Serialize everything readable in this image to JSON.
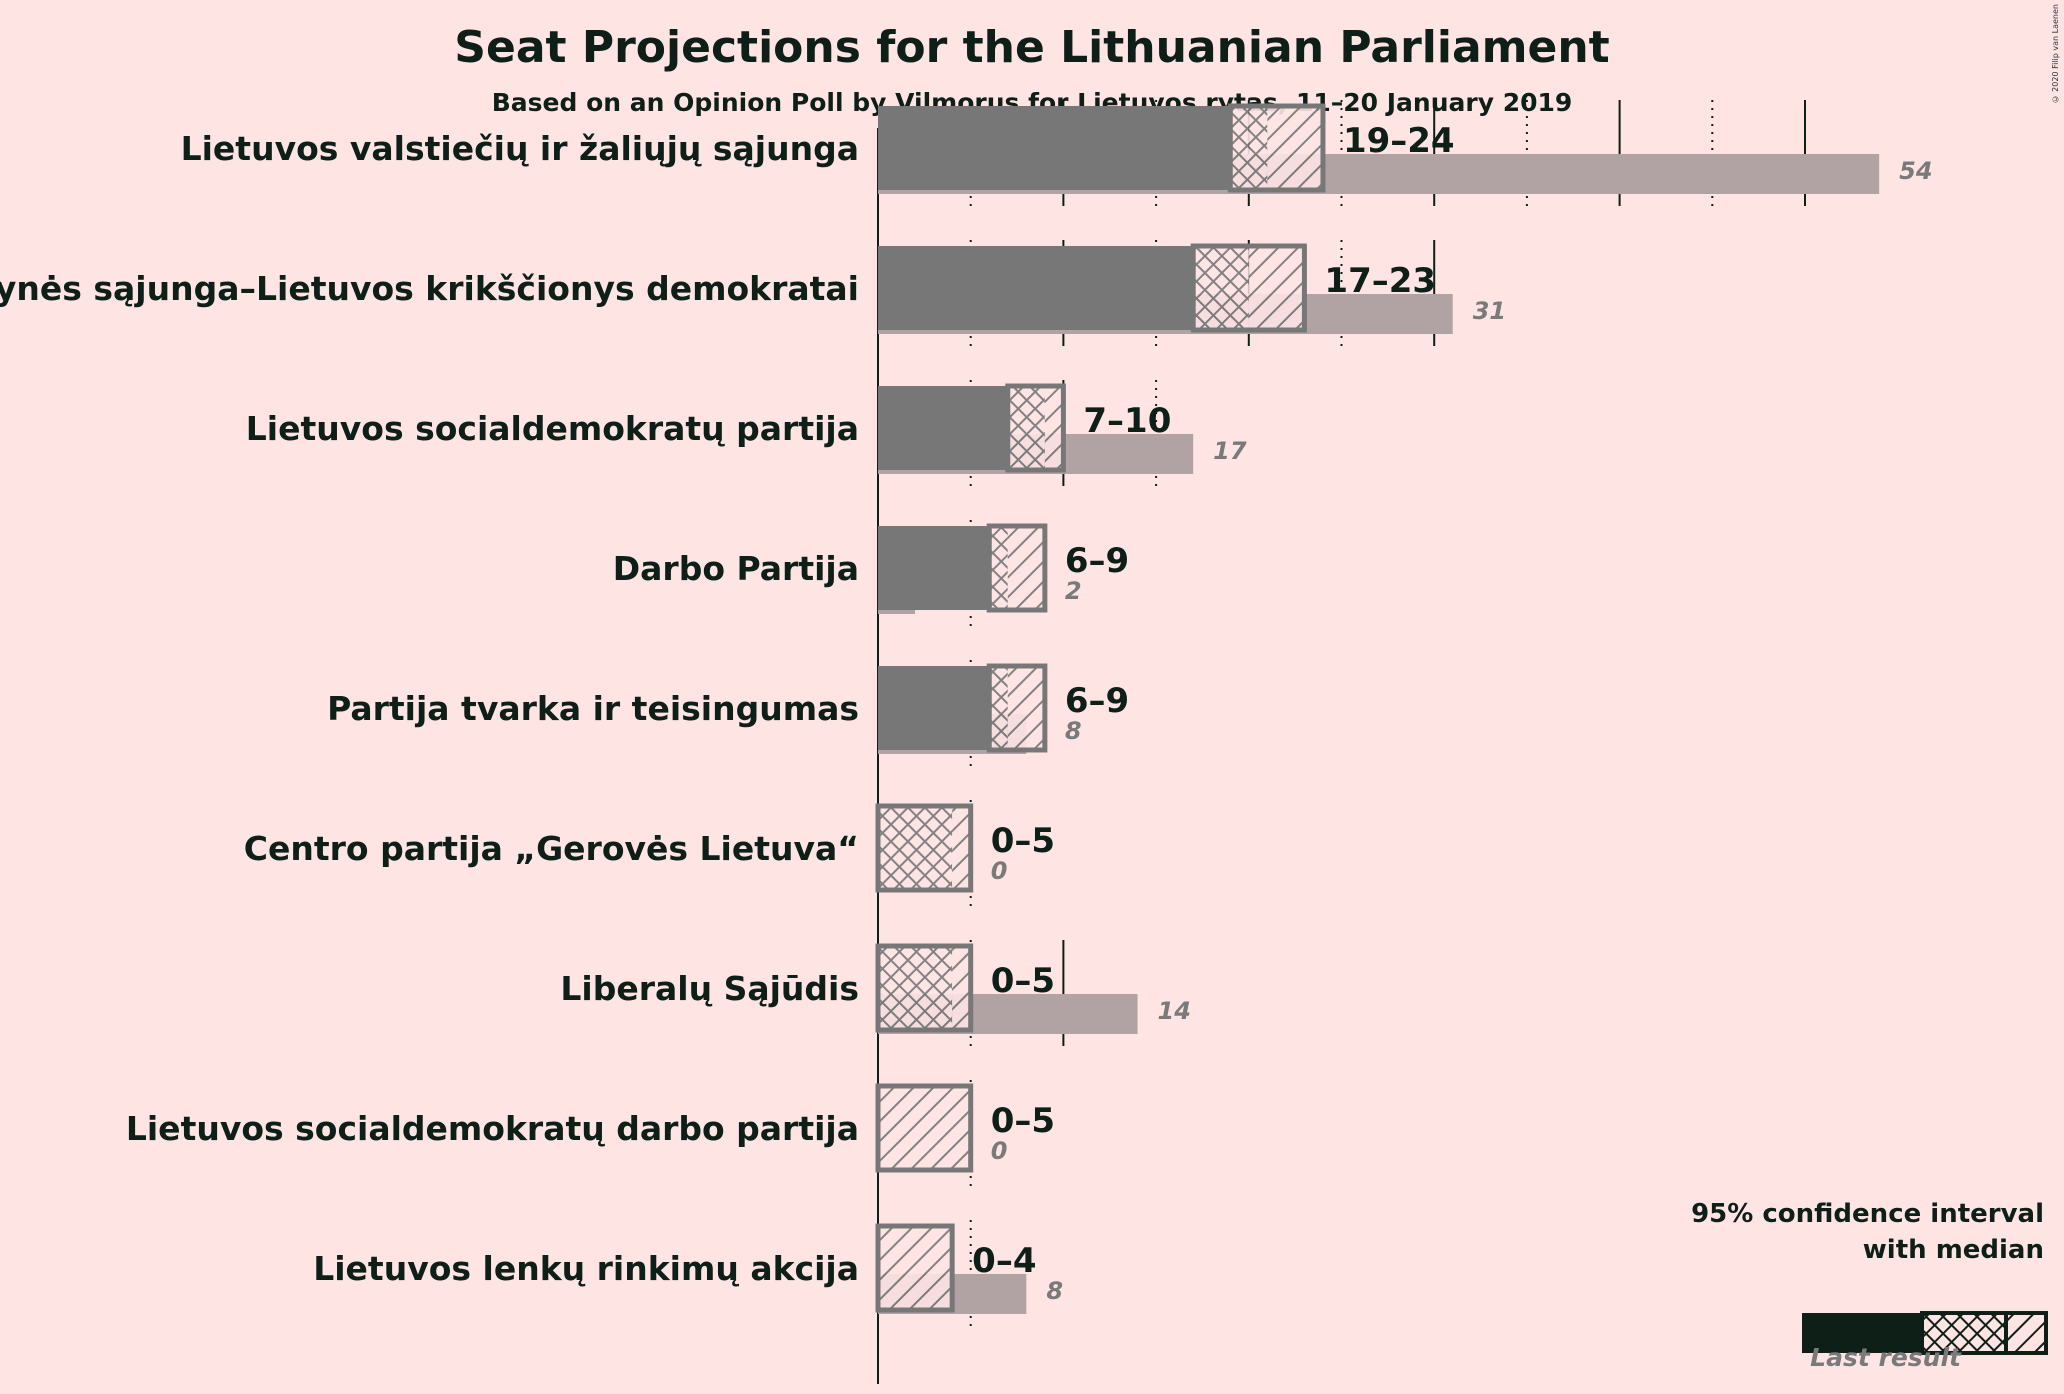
{
  "title": "Seat Projections for the Lithuanian Parliament",
  "subtitle": "Based on an Opinion Poll by Vilmorus for Lietuvos rytas, 11–20 January 2019",
  "copyright": "© 2020 Filip van Laenen",
  "colors": {
    "background": "#ffe4e4",
    "bar": "#777777",
    "last_result": "#b1a3a3",
    "legend_dark": "#0d1f17",
    "legend_last": "#7a6e6e"
  },
  "legend": {
    "line1": "95% confidence interval",
    "line2": "with median",
    "last_result": "Last result"
  },
  "chart_data": {
    "type": "bar",
    "orientation": "horizontal",
    "x_unit": "seats",
    "gridlines": {
      "solid_every": 10,
      "dotted_every": 5
    },
    "categories": [
      "Lietuvos valstiečių ir žaliųjų sąjunga",
      "Tėvynės sąjunga–Lietuvos krikščionys demokratai",
      "Lietuvos socialdemokratų partija",
      "Darbo Partija",
      "Partija tvarka ir teisingumas",
      "Centro partija „Gerovės Lietuva“",
      "Liberalų Sąjūdis",
      "Lietuvos socialdemokratų darbo partija",
      "Lietuvos lenkų rinkimų akcija"
    ],
    "series": [
      {
        "key": "ci_low",
        "values": [
          19,
          17,
          7,
          6,
          6,
          0,
          0,
          0,
          0
        ]
      },
      {
        "key": "median",
        "values": [
          21,
          20,
          9,
          7,
          7,
          4,
          4,
          0,
          0
        ]
      },
      {
        "key": "ci_high",
        "values": [
          24,
          23,
          10,
          9,
          9,
          5,
          5,
          5,
          4
        ]
      },
      {
        "key": "last_result",
        "values": [
          54,
          31,
          17,
          2,
          8,
          0,
          14,
          0,
          8
        ]
      }
    ],
    "range_labels": [
      "19–24",
      "17–23",
      "7–10",
      "6–9",
      "6–9",
      "0–5",
      "0–5",
      "0–5",
      "0–4"
    ],
    "last_labels": [
      "54",
      "31",
      "17",
      "2",
      "8",
      "0",
      "14",
      "0",
      "8"
    ]
  }
}
